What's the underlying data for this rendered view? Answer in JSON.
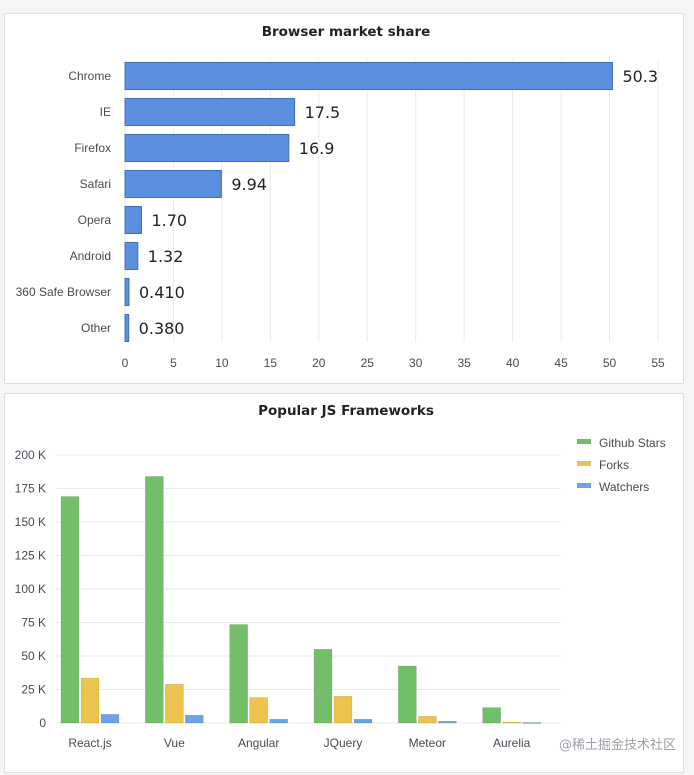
{
  "chart_data": [
    {
      "type": "bar",
      "orientation": "horizontal",
      "title": "Browser market share",
      "categories": [
        "Chrome",
        "IE",
        "Firefox",
        "Safari",
        "Opera",
        "Android",
        "360 Safe Browser",
        "Other"
      ],
      "values": [
        50.3,
        17.5,
        16.9,
        9.94,
        1.7,
        1.32,
        0.41,
        0.38
      ],
      "value_labels": [
        "50.3",
        "17.5",
        "16.9",
        "9.94",
        "1.70",
        "1.32",
        "0.410",
        "0.380"
      ],
      "xlim": [
        0,
        55
      ],
      "xticks": [
        "0",
        "5",
        "10",
        "15",
        "20",
        "25",
        "30",
        "35",
        "40",
        "45",
        "50",
        "55"
      ],
      "grid": true,
      "color": "#5b8ede"
    },
    {
      "type": "bar",
      "title": "Popular JS Frameworks",
      "categories": [
        "React.js",
        "Vue",
        "Angular",
        "JQuery",
        "Meteor",
        "Aurelia"
      ],
      "series": [
        {
          "name": "Github Stars",
          "values": [
            169000,
            184000,
            73500,
            55000,
            42500,
            11500
          ],
          "color": "#73bf69"
        },
        {
          "name": "Forks",
          "values": [
            33500,
            29000,
            19000,
            20000,
            5000,
            700
          ],
          "color": "#ecc34e"
        },
        {
          "name": "Watchers",
          "values": [
            6500,
            5800,
            2800,
            2800,
            1300,
            400
          ],
          "color": "#6ea3e5"
        }
      ],
      "ylim": [
        0,
        200000
      ],
      "yticks": [
        "0",
        "25 K",
        "50 K",
        "75 K",
        "100 K",
        "125 K",
        "150 K",
        "175 K",
        "200 K"
      ],
      "legend_position": "top-right",
      "grid": true
    }
  ],
  "watermark": "@稀土掘金技术社区"
}
